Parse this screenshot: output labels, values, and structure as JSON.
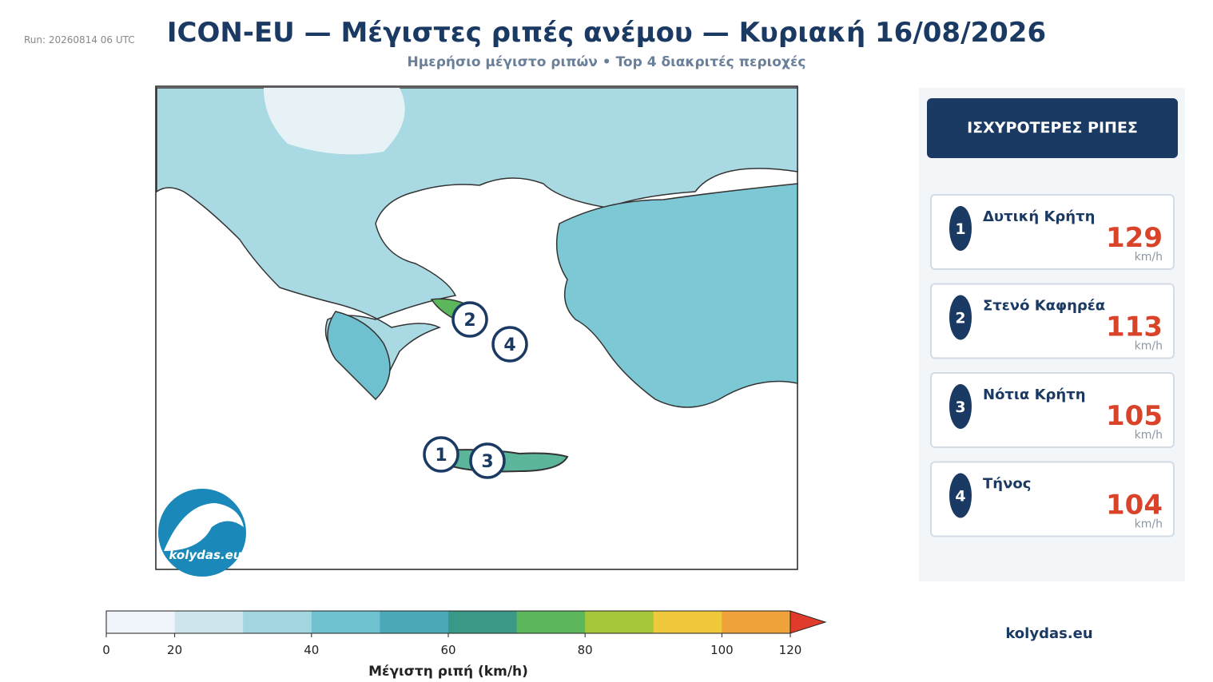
{
  "header": {
    "run": "Run: 20260814 06 UTC",
    "title": "ICON-EU — Μέγιστες ριπές ανέμου — Κυριακή 16/08/2026",
    "subtitle": "Ημερήσιο μέγιστο ριπών • Top 4 διακριτές περιοχές"
  },
  "panel": {
    "title": "ΙΣΧΥΡΟΤΕΡΕΣ ΡΙΠΕΣ",
    "unit": "km/h",
    "rankings": [
      {
        "rank": 1,
        "name": "Δυτική Κρήτη",
        "value": 129
      },
      {
        "rank": 2,
        "name": "Στενό Καφηρέα",
        "value": 113
      },
      {
        "rank": 3,
        "name": "Νότια Κρήτη",
        "value": 105
      },
      {
        "rank": 4,
        "name": "Τήνος",
        "value": 104
      }
    ]
  },
  "colorbar": {
    "label": "Μέγιστη ριπή (km/h)",
    "bounds": [
      0,
      20,
      30,
      40,
      50,
      60,
      70,
      80,
      90,
      100,
      120
    ],
    "colors": [
      "#eef4f9",
      "#cde6ee",
      "#a2d5df",
      "#6fc1cf",
      "#4aa8b9",
      "#3a9886",
      "#5bb65c",
      "#a5c83a",
      "#efc93b",
      "#f0a23b"
    ],
    "extend_color": "#e03b2b",
    "ticks": [
      0,
      20,
      40,
      60,
      80,
      100,
      120
    ]
  },
  "logo": "kolydas.eu",
  "footer": "kolydas.eu"
}
